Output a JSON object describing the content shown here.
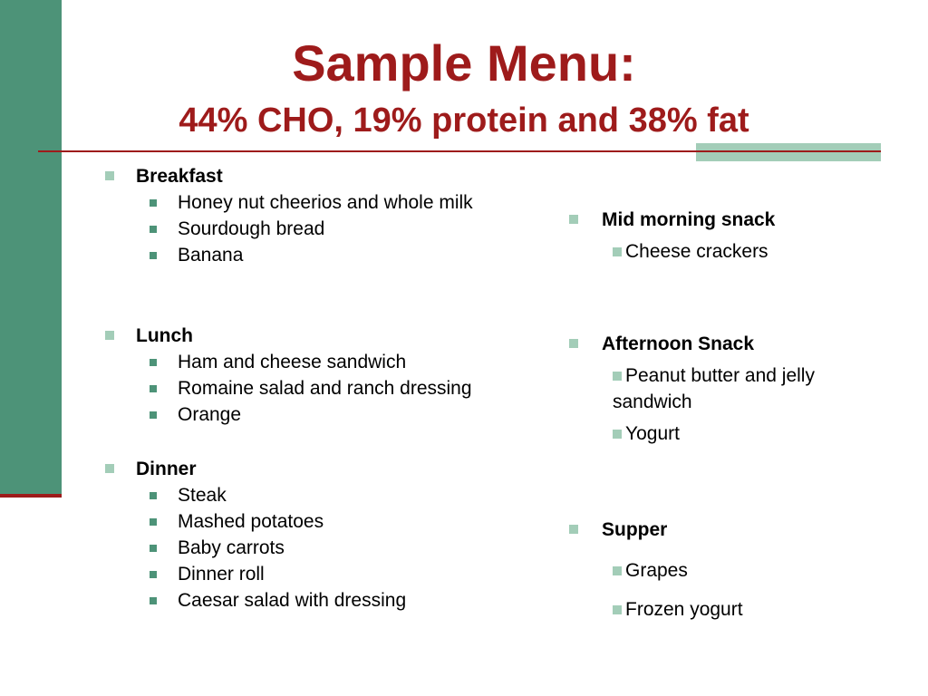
{
  "title": "Sample Menu:",
  "subtitle": "44% CHO, 19% protein and 38% fat",
  "left": {
    "breakfast": {
      "heading": "Breakfast",
      "items": [
        "Honey nut cheerios and whole milk",
        "Sourdough bread",
        "Banana"
      ]
    },
    "lunch": {
      "heading": "Lunch",
      "items": [
        "Ham and cheese sandwich",
        "Romaine salad and ranch dressing",
        "Orange"
      ]
    },
    "dinner": {
      "heading": "Dinner",
      "items": [
        "Steak",
        "Mashed potatoes",
        "Baby carrots",
        "Dinner roll",
        "Caesar salad with dressing"
      ]
    }
  },
  "right": {
    "mid_morning": {
      "heading": "Mid morning snack",
      "items": [
        "Cheese crackers"
      ]
    },
    "afternoon": {
      "heading": "Afternoon Snack",
      "items": [
        "Peanut butter and jelly sandwich",
        "Yogurt"
      ]
    },
    "supper": {
      "heading": "Supper",
      "items": [
        "Grapes",
        "Frozen yogurt"
      ]
    }
  },
  "colors": {
    "accent_red": "#9e1b1b",
    "accent_green": "#4d9378",
    "light_green": "#a3cdb8"
  }
}
